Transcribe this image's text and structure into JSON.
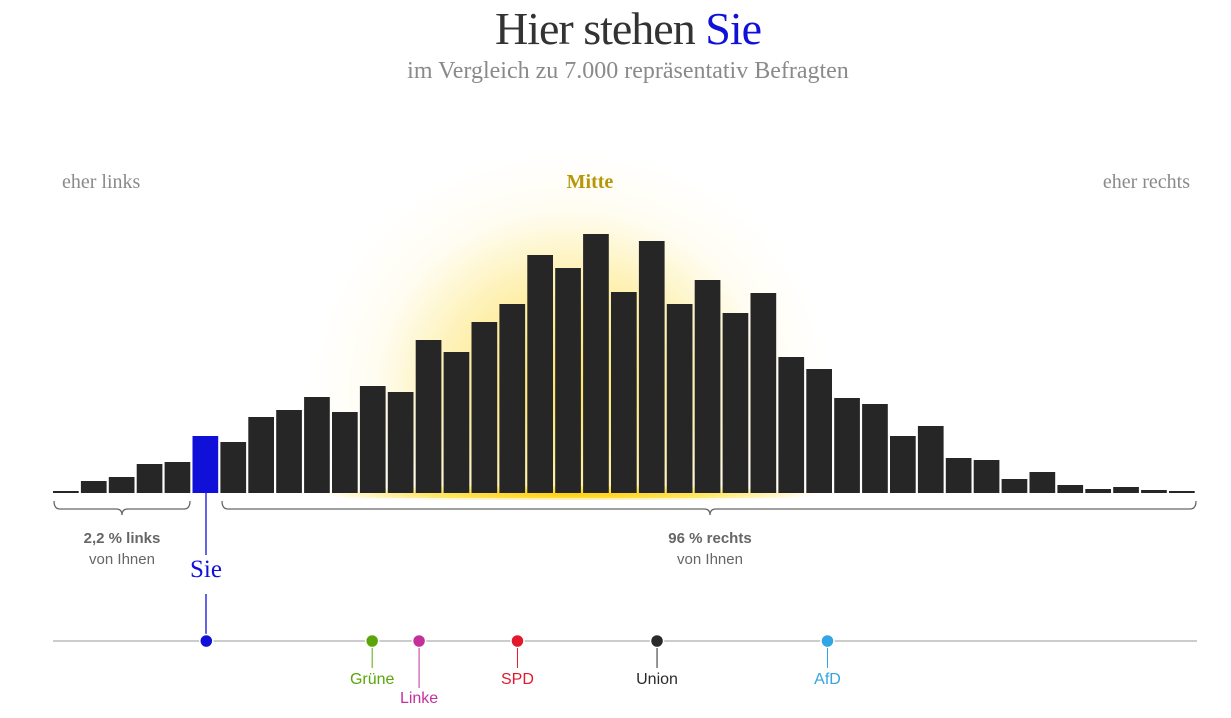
{
  "header": {
    "title_main": "Hier stehen",
    "title_accent": "Sie",
    "subtitle": "im Vergleich zu 7.000 repräsentativ Befragten"
  },
  "labels": {
    "left": "eher links",
    "center": "Mitte",
    "right": "eher rechts"
  },
  "brackets": {
    "left": {
      "value": "2,2 % links",
      "sub": "von Ihnen"
    },
    "right": {
      "value": "96 % rechts",
      "sub": "von Ihnen"
    }
  },
  "colors": {
    "bar": "#262626",
    "user": "#1010d8",
    "gold": "#b8960a"
  },
  "chart_data": {
    "type": "bar",
    "title": "Hier stehen Sie",
    "xlabel": "links – rechts",
    "ylabel": "",
    "user_bin": 6,
    "values": [
      2,
      12,
      16,
      29,
      31,
      57,
      51,
      76,
      83,
      96,
      81,
      107,
      101,
      153,
      141,
      171,
      189,
      238,
      225,
      259,
      201,
      252,
      189,
      213,
      180,
      200,
      136,
      124,
      95,
      89,
      57,
      67,
      35,
      33,
      14,
      21,
      8,
      4,
      6,
      3,
      2
    ]
  },
  "scale": {
    "user": {
      "label": "Sie",
      "color": "#1010d8",
      "position": 0.134
    },
    "parties": [
      {
        "name": "Grüne",
        "color": "#5aa60a",
        "position": 0.279
      },
      {
        "name": "Linke",
        "color": "#c4309b",
        "position": 0.32
      },
      {
        "name": "SPD",
        "color": "#e3182d",
        "position": 0.406
      },
      {
        "name": "Union",
        "color": "#2a2a2a",
        "position": 0.528
      },
      {
        "name": "AfD",
        "color": "#33a4e4",
        "position": 0.677
      }
    ]
  }
}
